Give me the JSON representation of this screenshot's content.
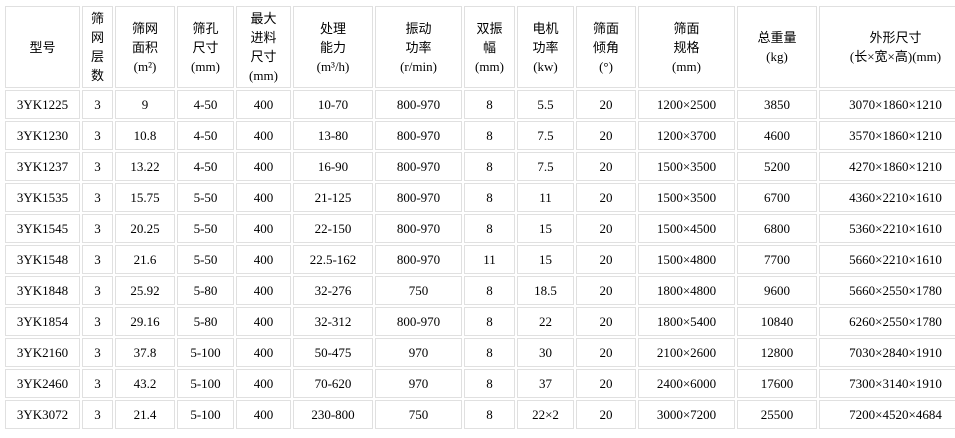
{
  "colors": {
    "page_background": "#ffffff",
    "cell_background": "#ffffff",
    "grid_border": "#e0e0e0",
    "text": "#000000"
  },
  "table": {
    "headers": [
      "型号",
      "筛网\n层数",
      "筛网\n面积\n(m²)",
      "筛孔\n尺寸\n(mm)",
      "最大\n进料\n尺寸\n(mm)",
      "处理\n能力\n(m³/h)",
      "振动\n功率\n(r/min)",
      "双振\n幅\n(mm)",
      "电机\n功率\n(kw)",
      "筛面\n倾角\n(°)",
      "筛面\n规格\n(mm)",
      "总重量\n(kg)",
      "外形尺寸\n(长×宽×高)(mm)"
    ],
    "rows": [
      [
        "3YK1225",
        "3",
        "9",
        "4-50",
        "400",
        "10-70",
        "800-970",
        "8",
        "5.5",
        "20",
        "1200×2500",
        "3850",
        "3070×1860×1210"
      ],
      [
        "3YK1230",
        "3",
        "10.8",
        "4-50",
        "400",
        "13-80",
        "800-970",
        "8",
        "7.5",
        "20",
        "1200×3700",
        "4600",
        "3570×1860×1210"
      ],
      [
        "3YK1237",
        "3",
        "13.22",
        "4-50",
        "400",
        "16-90",
        "800-970",
        "8",
        "7.5",
        "20",
        "1500×3500",
        "5200",
        "4270×1860×1210"
      ],
      [
        "3YK1535",
        "3",
        "15.75",
        "5-50",
        "400",
        "21-125",
        "800-970",
        "8",
        "11",
        "20",
        "1500×3500",
        "6700",
        "4360×2210×1610"
      ],
      [
        "3YK1545",
        "3",
        "20.25",
        "5-50",
        "400",
        "22-150",
        "800-970",
        "8",
        "15",
        "20",
        "1500×4500",
        "6800",
        "5360×2210×1610"
      ],
      [
        "3YK1548",
        "3",
        "21.6",
        "5-50",
        "400",
        "22.5-162",
        "800-970",
        "11",
        "15",
        "20",
        "1500×4800",
        "7700",
        "5660×2210×1610"
      ],
      [
        "3YK1848",
        "3",
        "25.92",
        "5-80",
        "400",
        "32-276",
        "750",
        "8",
        "18.5",
        "20",
        "1800×4800",
        "9600",
        "5660×2550×1780"
      ],
      [
        "3YK1854",
        "3",
        "29.16",
        "5-80",
        "400",
        "32-312",
        "800-970",
        "8",
        "22",
        "20",
        "1800×5400",
        "10840",
        "6260×2550×1780"
      ],
      [
        "3YK2160",
        "3",
        "37.8",
        "5-100",
        "400",
        "50-475",
        "970",
        "8",
        "30",
        "20",
        "2100×2600",
        "12800",
        "7030×2840×1910"
      ],
      [
        "3YK2460",
        "3",
        "43.2",
        "5-100",
        "400",
        "70-620",
        "970",
        "8",
        "37",
        "20",
        "2400×6000",
        "17600",
        "7300×3140×1910"
      ],
      [
        "3YK3072",
        "3",
        "21.4",
        "5-100",
        "400",
        "230-800",
        "750",
        "8",
        "22×2",
        "20",
        "3000×7200",
        "25500",
        "7200×4520×4684"
      ]
    ]
  }
}
